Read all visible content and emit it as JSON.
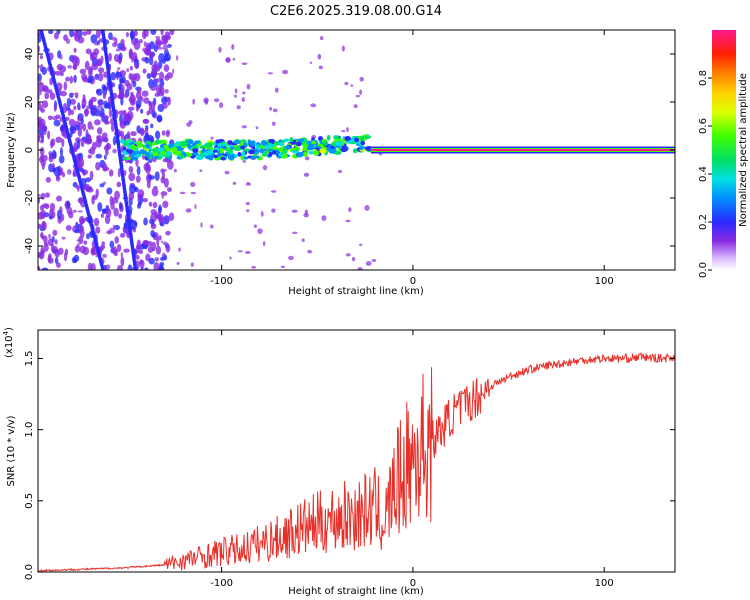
{
  "title": "C2E6.2025.319.08.00.G14",
  "chart_data": [
    {
      "type": "heatmap",
      "xlabel": "Height of straight line (km)",
      "ylabel": "Frequency (Hz)",
      "xlim": [
        -196,
        137
      ],
      "ylim": [
        -50,
        50
      ],
      "xticks": [
        -100,
        0,
        100
      ],
      "yticks": [
        -40,
        -20,
        0,
        20,
        40
      ],
      "colorbar": {
        "label": "Normalized spectral amplitude",
        "range": [
          0,
          1
        ],
        "ticks": [
          "0.0",
          "0.2",
          "0.4",
          "0.6",
          "0.8"
        ],
        "tick_values": [
          0.0,
          0.2,
          0.4,
          0.6,
          0.8
        ]
      },
      "features": [
        {
          "name": "carrier-line",
          "x_range": [
            -22,
            137
          ],
          "freq_hz": 0,
          "amplitude": 0.95
        },
        {
          "name": "noisy-band",
          "x_range": [
            -152,
            -22
          ],
          "freq_hz": 0,
          "spread_hz": 6,
          "amplitude": 0.45
        },
        {
          "name": "diagonal-streak-1",
          "from": [
            -196,
            55
          ],
          "to": [
            -162,
            -50
          ]
        },
        {
          "name": "diagonal-streak-2",
          "from": [
            -163,
            55
          ],
          "to": [
            -145,
            -50
          ]
        }
      ]
    },
    {
      "type": "line",
      "xlabel": "Height of straight line (km)",
      "ylabel": "SNR (10 * v/v)",
      "y_multiplier_label": "(x10",
      "y_multiplier_exp": "4",
      "y_multiplier_close": ")",
      "xlim": [
        -196,
        137
      ],
      "ylim": [
        0,
        1.7
      ],
      "xticks": [
        -100,
        0,
        100
      ],
      "yticks": [
        "0.0",
        "0.5",
        "1.0",
        "1.5"
      ],
      "ytick_values": [
        0.0,
        0.5,
        1.0,
        1.5
      ],
      "color": "#e8302a",
      "series": [
        {
          "name": "SNR",
          "x": [
            -196,
            -170,
            -150,
            -140,
            -130,
            -120,
            -110,
            -100,
            -90,
            -80,
            -70,
            -60,
            -50,
            -40,
            -30,
            -20,
            -15,
            -10,
            -5,
            0,
            5,
            10,
            15,
            20,
            30,
            40,
            50,
            60,
            70,
            80,
            90,
            100,
            110,
            120,
            130,
            137
          ],
          "y": [
            0.01,
            0.02,
            0.03,
            0.04,
            0.05,
            0.08,
            0.11,
            0.14,
            0.16,
            0.2,
            0.24,
            0.3,
            0.34,
            0.38,
            0.4,
            0.45,
            0.35,
            0.58,
            0.7,
            0.8,
            0.88,
            0.92,
            1.0,
            1.1,
            1.2,
            1.3,
            1.37,
            1.42,
            1.45,
            1.47,
            1.49,
            1.5,
            1.5,
            1.51,
            1.5,
            1.51
          ]
        }
      ]
    }
  ]
}
